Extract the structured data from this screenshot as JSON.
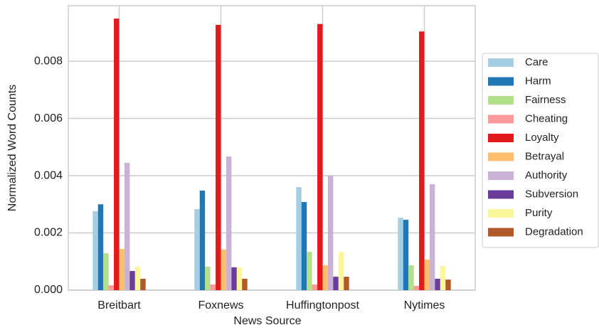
{
  "chart_data": {
    "type": "bar",
    "x_label": "News Source",
    "y_label": "Normalized Word Counts",
    "categories": [
      "Breitbart",
      "Foxnews",
      "Huffingtonpost",
      "Nytimes"
    ],
    "series": [
      {
        "name": "Care",
        "color": "#a6cee3",
        "values": [
          0.00276,
          0.00283,
          0.0036,
          0.00253
        ]
      },
      {
        "name": "Harm",
        "color": "#1f78b4",
        "values": [
          0.003,
          0.00348,
          0.00308,
          0.00246
        ]
      },
      {
        "name": "Fairness",
        "color": "#b2df8a",
        "values": [
          0.00129,
          0.00082,
          0.00134,
          0.00087
        ]
      },
      {
        "name": "Cheating",
        "color": "#fb9a99",
        "values": [
          0.00017,
          0.0002,
          0.0002,
          0.00015
        ]
      },
      {
        "name": "Loyalty",
        "color": "#e31a1c",
        "values": [
          0.00949,
          0.00927,
          0.0093,
          0.00904
        ]
      },
      {
        "name": "Betrayal",
        "color": "#fdbf6f",
        "values": [
          0.00144,
          0.00142,
          0.00087,
          0.00107
        ]
      },
      {
        "name": "Authority",
        "color": "#cab2d6",
        "values": [
          0.00445,
          0.00467,
          0.004,
          0.0037
        ]
      },
      {
        "name": "Subversion",
        "color": "#6a3d9a",
        "values": [
          0.00067,
          0.0008,
          0.00047,
          0.0004
        ]
      },
      {
        "name": "Purity",
        "color": "#fbf59b",
        "values": [
          0.00082,
          0.0008,
          0.00134,
          0.00084
        ]
      },
      {
        "name": "Degradation",
        "color": "#b15928",
        "values": [
          0.0004,
          0.0004,
          0.00047,
          0.00037
        ]
      }
    ],
    "ylim": [
      0,
      0.00994
    ],
    "yticks": [
      {
        "value": 0,
        "label": "0.000"
      },
      {
        "value": 0.002,
        "label": "0.002"
      },
      {
        "value": 0.004,
        "label": "0.004"
      },
      {
        "value": 0.006,
        "label": "0.006"
      },
      {
        "value": 0.008,
        "label": "0.008"
      }
    ],
    "grid": true,
    "legend": "right"
  }
}
